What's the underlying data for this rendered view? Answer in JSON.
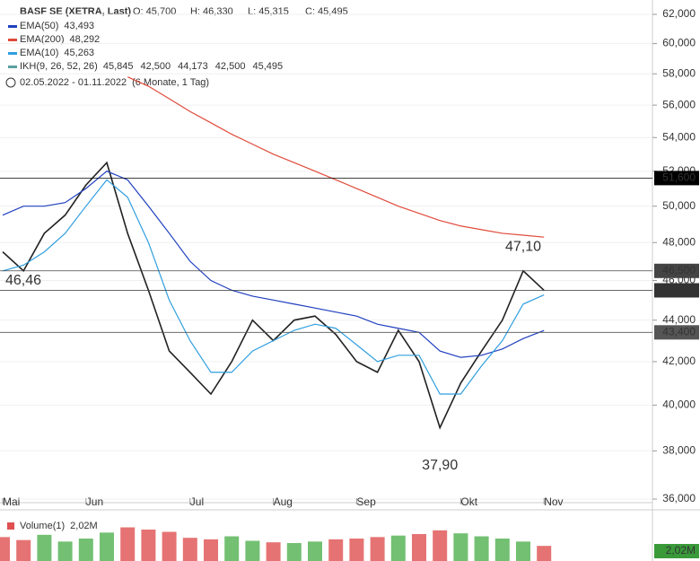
{
  "header": {
    "title": "BASF SE (XETRA, Last)",
    "ohlc": [
      "O: 45,700",
      "H: 46,330",
      "L: 45,315",
      "C: 45,495"
    ],
    "period": "02.05.2022 - 01.11.2022",
    "period_note": "(6 Monate, 1 Tag)",
    "indicators": [
      {
        "name": "EMA(50)",
        "value": "43,493",
        "color": "#1f3fbf"
      },
      {
        "name": "EMA(200)",
        "value": "48,292",
        "color": "#e04a3a"
      },
      {
        "name": "EMA(10)",
        "value": "45,263",
        "color": "#2f9fdf"
      },
      {
        "name": "IKH(9, 26, 52, 26)",
        "value": "45,845",
        "color": "#5aa0a0",
        "extra": [
          {
            "text": "42,500",
            "color": "#555"
          },
          {
            "text": "44,173",
            "color": "#8b3d8b"
          },
          {
            "text": "42,500",
            "color": "#5a8a3a"
          },
          {
            "text": "45,495",
            "color": "#d49a20"
          }
        ]
      }
    ]
  },
  "chart_data": [
    {
      "type": "line",
      "log_scale": true,
      "categories": [
        "Mai",
        null,
        null,
        null,
        "Jun",
        null,
        null,
        null,
        null,
        "Jul",
        null,
        null,
        null,
        "Aug",
        null,
        null,
        null,
        "Sep",
        null,
        null,
        null,
        null,
        "Okt",
        null,
        null,
        null,
        "Nov"
      ],
      "ylim": [
        36,
        62
      ],
      "yticks": [
        {
          "value": 36,
          "label": "36,000"
        },
        {
          "value": 38,
          "label": "38,000"
        },
        {
          "value": 40,
          "label": "40,000"
        },
        {
          "value": 42,
          "label": "42,000"
        },
        {
          "value": 44,
          "label": "44,000"
        },
        {
          "value": 46,
          "label": "46,000"
        },
        {
          "value": 48,
          "label": "48,000"
        },
        {
          "value": 50,
          "label": "50,000"
        },
        {
          "value": 52,
          "label": "52,000"
        },
        {
          "value": 54,
          "label": "54,000"
        },
        {
          "value": 56,
          "label": "56,000"
        },
        {
          "value": 58,
          "label": "58,000"
        },
        {
          "value": 60,
          "label": "60,000"
        },
        {
          "value": 62,
          "label": "62,000"
        }
      ],
      "grid": true,
      "series": [
        {
          "name": "Kurs",
          "color": "#222222",
          "values": [
            47.5,
            46.5,
            48.5,
            49.5,
            51.2,
            52.5,
            48.5,
            45.5,
            42.5,
            41.5,
            40.5,
            42,
            44,
            43,
            44,
            44.2,
            43.3,
            42,
            41.5,
            43.5,
            42,
            39,
            41,
            42.5,
            44,
            46.5,
            45.495
          ]
        },
        {
          "name": "EMA(50)",
          "color": "#1f3fbf",
          "values": [
            49.5,
            50,
            50,
            50.2,
            51,
            52,
            51.5,
            50,
            48.5,
            47,
            46,
            45.5,
            45.2,
            45,
            44.8,
            44.6,
            44.4,
            44.2,
            43.8,
            43.6,
            43.4,
            42.5,
            42.2,
            42.3,
            42.6,
            43.1,
            43.493
          ]
        },
        {
          "name": "EMA(200)",
          "color": "#e04a3a",
          "values": [
            null,
            null,
            null,
            null,
            null,
            null,
            57.8,
            57.2,
            56.4,
            55.6,
            54.9,
            54.2,
            53.6,
            53.0,
            52.5,
            52.0,
            51.5,
            51.0,
            50.5,
            50.0,
            49.6,
            49.2,
            48.9,
            48.7,
            48.5,
            48.4,
            48.292
          ]
        },
        {
          "name": "EMA(10)",
          "color": "#2f9fdf",
          "values": [
            46.5,
            46.8,
            47.5,
            48.5,
            50,
            51.5,
            50.5,
            48,
            45,
            43,
            41.5,
            41.5,
            42.5,
            43,
            43.5,
            43.8,
            43.6,
            42.8,
            42,
            42.3,
            42.3,
            40.5,
            40.5,
            41.8,
            43,
            44.8,
            45.263
          ]
        }
      ],
      "levels": [
        {
          "value": 51.6,
          "label": "51,600",
          "color": "#000000"
        },
        {
          "value": 46.5,
          "label": "46,500",
          "color": "#444444"
        },
        {
          "value": 45.495,
          "label": "45,495",
          "color": "#333333"
        },
        {
          "value": 43.4,
          "label": "43,400",
          "color": "#555555"
        }
      ],
      "annotations": [
        {
          "text": "46,46",
          "value": 46.46,
          "index": 0
        },
        {
          "text": "47,10",
          "value": 47.1,
          "index": 25
        },
        {
          "text": "37,90",
          "value": 37.9,
          "index": 21
        }
      ]
    },
    {
      "type": "bar",
      "title": "Volume(1)",
      "value_label": "2,02M",
      "axis_label": "2,02M",
      "ylim": [
        0,
        6
      ],
      "values": [
        3.2,
        2.8,
        3.5,
        2.6,
        3.0,
        3.8,
        4.5,
        4.2,
        3.9,
        3.1,
        2.9,
        3.3,
        2.7,
        2.5,
        2.4,
        2.6,
        2.9,
        3.0,
        3.2,
        3.4,
        3.6,
        4.1,
        3.7,
        3.3,
        3.0,
        2.6,
        2.02
      ],
      "colors": [
        "#e05050",
        "#e05050",
        "#50b050",
        "#50b050",
        "#50b050",
        "#50b050",
        "#e05050",
        "#e05050",
        "#e05050",
        "#e05050",
        "#e05050",
        "#50b050",
        "#50b050",
        "#e05050",
        "#50b050",
        "#50b050",
        "#e05050",
        "#e05050",
        "#e05050",
        "#50b050",
        "#e05050",
        "#e05050",
        "#50b050",
        "#50b050",
        "#50b050",
        "#50b050",
        "#e05050"
      ]
    }
  ]
}
